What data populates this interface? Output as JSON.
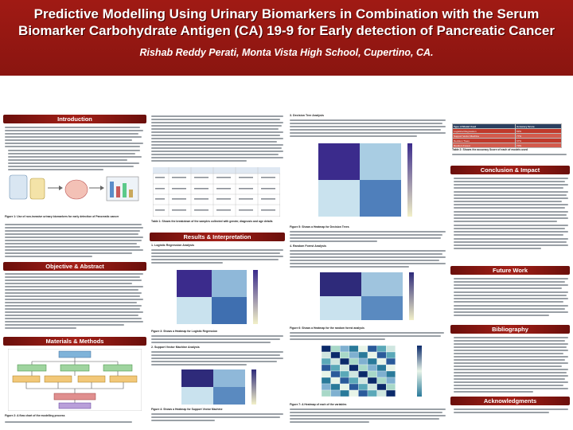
{
  "title": {
    "line1": "Predictive Modelling Using Urinary Biomarkers in Combination with the Serum",
    "line2": "Biomarker Carbohydrate Antigen (CA) 19-9 for Early detection of Pancreatic Cancer",
    "authors": "Rishab Reddy Perati, Monta Vista High School, Cupertino, CA."
  },
  "sections": {
    "introduction": "Introduction",
    "objective": "Objective & Abstract",
    "materials": "Materials & Methods",
    "results": "Results & Interpretation",
    "conclusion": "Conclusion & Impact",
    "future": "Future Work",
    "bibliography": "Bibliography",
    "acknowledgments": "Acknowledgments"
  },
  "figure_captions": {
    "fig1": "Figure 1: Use of non-invasive urinary biomarkers for early detection of Pancreatic cancer",
    "fig2": "Figure 2: A flow chart of the modelling process",
    "table1": "Table 1: Shows the breakdown of the samples collected with gender, diagnosis and age details",
    "fig3": "Figure 3: Shows a Heatmap for Logistic Regression",
    "fig4": "Figure 4: Shows a Heatmap for Support Vector Machine",
    "fig5": "Figure 5: Shows a Heatmap for Decision Trees",
    "fig6": "Figure 6: Shows a Heatmap for the random forest analysis",
    "fig7": "Figure 7: A Heatmap of each of the variables",
    "table2": "Table 2: Shows the accuracy Score of each of models used"
  },
  "subheads": {
    "logistic": "1. Logistic Regression Analysis",
    "svm": "2. Support Vector Machine Analysis",
    "decision": "3. Decision Tree Analysis",
    "random": "4. Random Forest Analysis"
  },
  "accuracy_table": {
    "headers": [
      "Type of Model Used",
      "Accuracy Score"
    ],
    "rows": [
      [
        "Logistical Regression",
        "83%"
      ],
      [
        "Support Vector Machine",
        "77%"
      ],
      [
        "Decision Trees",
        "67%"
      ],
      [
        "Random Forest",
        "70%"
      ]
    ]
  },
  "colors": {
    "header_bg": "#8a1510",
    "section_bar": "#a32018",
    "heatmap_high": "#3a2a8a",
    "heatmap_low": "#f2f0c8"
  }
}
